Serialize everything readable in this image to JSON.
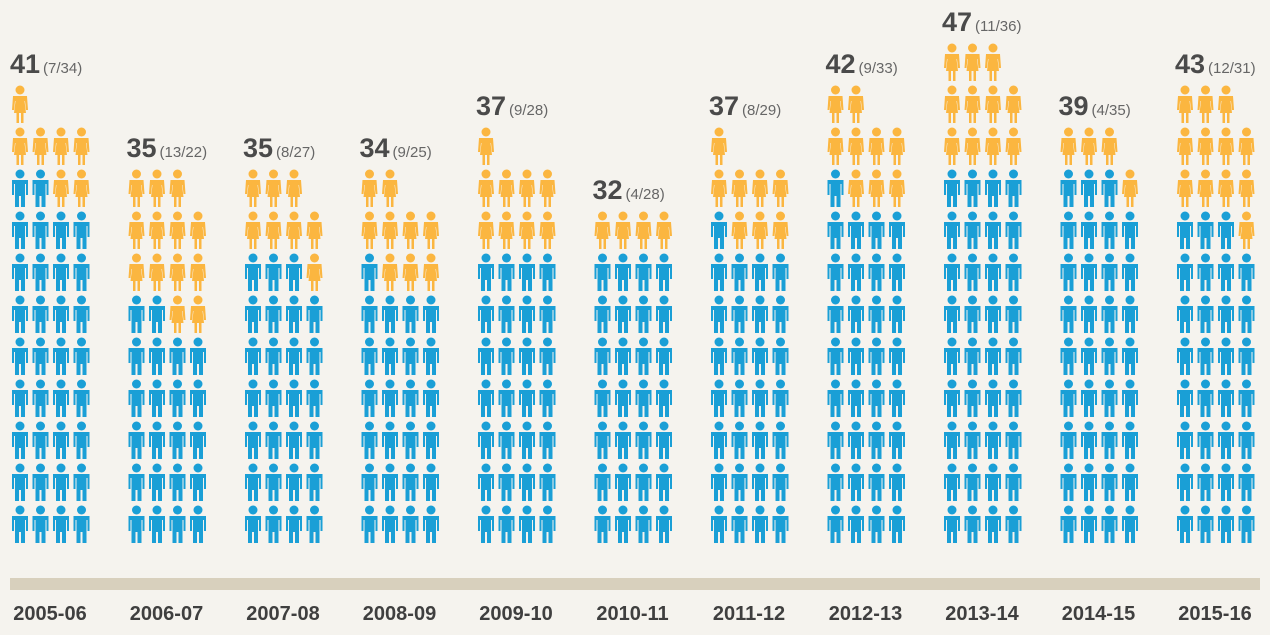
{
  "chart_data": {
    "type": "isotype",
    "categories": [
      "2005-06",
      "2006-07",
      "2007-08",
      "2008-09",
      "2009-10",
      "2010-11",
      "2011-12",
      "2012-13",
      "2013-14",
      "2014-15",
      "2015-16"
    ],
    "totals": [
      41,
      35,
      35,
      34,
      37,
      32,
      37,
      42,
      47,
      39,
      43
    ],
    "value_labels": [
      "(7/34)",
      "(13/22)",
      "(8/27)",
      "(9/25)",
      "(9/28)",
      "(4/28)",
      "(8/29)",
      "(9/33)",
      "(11/36)",
      "(4/35)",
      "(12/31)"
    ],
    "series": [
      {
        "color": "#1a9fd6",
        "values": [
          34,
          22,
          27,
          25,
          28,
          28,
          29,
          33,
          36,
          35,
          31
        ]
      },
      {
        "color": "#fbb640",
        "values": [
          7,
          13,
          8,
          9,
          9,
          4,
          8,
          9,
          11,
          4,
          12
        ]
      }
    ]
  }
}
